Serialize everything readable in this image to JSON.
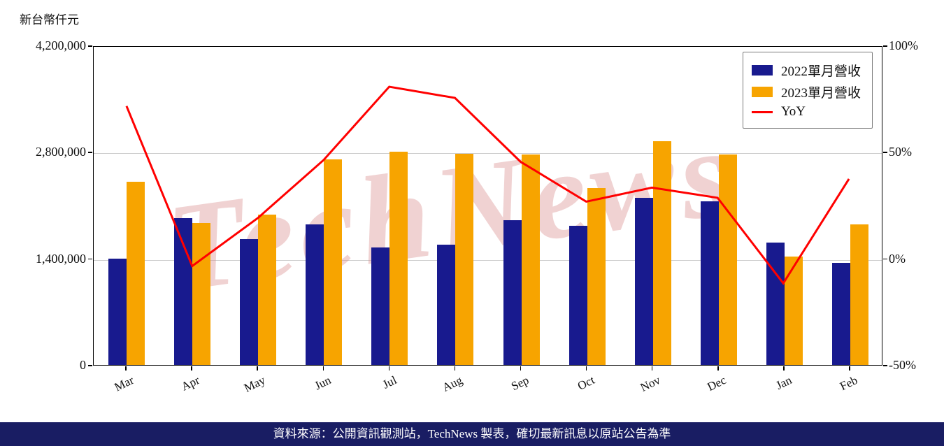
{
  "unit_label": "新台幣仟元",
  "watermark": "TechNews",
  "footer_text": "資料來源：公開資訊觀測站，TechNews 製表，確切最新訊息以原站公告為準",
  "colors": {
    "bar_2022": "#181a8e",
    "bar_2023": "#f7a400",
    "yoy_line": "#ff0000",
    "footer_bg": "#191d63",
    "watermark": "#d98c8c",
    "grid": "#cccccc"
  },
  "chart_data": {
    "type": "bar+line",
    "title": "",
    "categories": [
      "Mar",
      "Apr",
      "May",
      "Jun",
      "Jul",
      "Aug",
      "Sep",
      "Oct",
      "Nov",
      "Dec",
      "Jan",
      "Feb"
    ],
    "series": [
      {
        "name": "2022單月營收",
        "type": "bar",
        "axis": "left",
        "color": "#181a8e",
        "values": [
          1400000,
          1930000,
          1655000,
          1845000,
          1545000,
          1580000,
          1900000,
          1830000,
          2200000,
          2150000,
          1610000,
          1340000
        ]
      },
      {
        "name": "2023單月營收",
        "type": "bar",
        "axis": "left",
        "color": "#f7a400",
        "values": [
          2410000,
          1865000,
          1975000,
          2705000,
          2800000,
          2780000,
          2770000,
          2325000,
          2940000,
          2770000,
          1425000,
          1845000
        ]
      },
      {
        "name": "YoY",
        "type": "line",
        "axis": "right",
        "color": "#ff0000",
        "values": [
          72.1,
          -3.4,
          19.3,
          46.6,
          81.2,
          75.9,
          45.8,
          27.0,
          33.6,
          28.8,
          -11.5,
          37.7
        ]
      }
    ],
    "left_axis": {
      "min": 0,
      "max": 4200000,
      "ticks": [
        0,
        1400000,
        2800000,
        4200000
      ],
      "labels": [
        "0",
        "1,400,000",
        "2,800,000",
        "4,200,000"
      ]
    },
    "right_axis": {
      "min": -50,
      "max": 100,
      "ticks": [
        -50,
        0,
        50,
        100
      ],
      "labels": [
        "-50%",
        "0%",
        "50%",
        "100%"
      ]
    },
    "grid": true,
    "legend_position": "top-right"
  }
}
